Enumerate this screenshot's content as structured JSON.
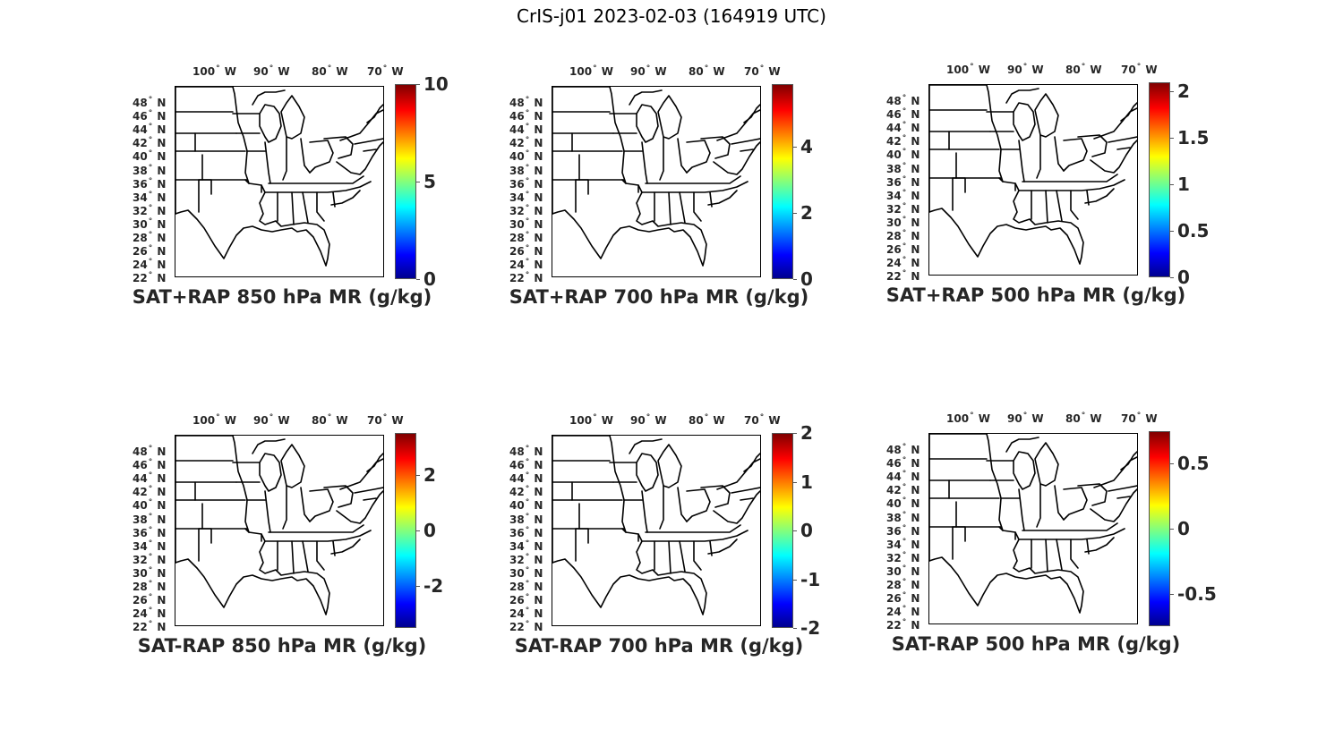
{
  "figure": {
    "title": "CrIS-j01 2023-02-03 (164919 UTC)"
  },
  "axes": {
    "lon_ticks": [
      "100",
      "90",
      "80",
      "70"
    ],
    "lon_hemisphere": "W",
    "lat_ticks": [
      "48",
      "46",
      "44",
      "42",
      "40",
      "38",
      "36",
      "34",
      "32",
      "30",
      "28",
      "26",
      "24",
      "22"
    ],
    "lat_hemisphere": "N",
    "lon_range": [
      -107,
      -66
    ],
    "lat_range": [
      22,
      50
    ]
  },
  "panels": [
    {
      "title": "SAT+RAP 850 hPa MR (g/kg)",
      "cbar_range": [
        0,
        10
      ],
      "cbar_ticks": [
        {
          "value": 0,
          "label": "0"
        },
        {
          "value": 5,
          "label": "5"
        },
        {
          "value": 10,
          "label": "10"
        }
      ]
    },
    {
      "title": "SAT+RAP 700 hPa MR (g/kg)",
      "cbar_range": [
        0,
        5.9
      ],
      "cbar_ticks": [
        {
          "value": 0,
          "label": "0"
        },
        {
          "value": 2,
          "label": "2"
        },
        {
          "value": 4,
          "label": "4"
        }
      ]
    },
    {
      "title": "SAT+RAP 500 hPa MR (g/kg)",
      "cbar_range": [
        0,
        2.1
      ],
      "cbar_ticks": [
        {
          "value": 0,
          "label": "0"
        },
        {
          "value": 0.5,
          "label": "0.5"
        },
        {
          "value": 1,
          "label": "1"
        },
        {
          "value": 1.5,
          "label": "1.5"
        },
        {
          "value": 2,
          "label": "2"
        }
      ]
    },
    {
      "title": "SAT-RAP 850 hPa MR (g/kg)",
      "cbar_range": [
        -3.5,
        3.5
      ],
      "cbar_ticks": [
        {
          "value": -2,
          "label": "-2"
        },
        {
          "value": 0,
          "label": "0"
        },
        {
          "value": 2,
          "label": "2"
        }
      ]
    },
    {
      "title": "SAT-RAP 700 hPa MR (g/kg)",
      "cbar_range": [
        -2,
        2
      ],
      "cbar_ticks": [
        {
          "value": -2,
          "label": "-2"
        },
        {
          "value": -1,
          "label": "-1"
        },
        {
          "value": 0,
          "label": "0"
        },
        {
          "value": 1,
          "label": "1"
        },
        {
          "value": 2,
          "label": "2"
        }
      ]
    },
    {
      "title": "SAT-RAP 500 hPa MR (g/kg)",
      "cbar_range": [
        -0.75,
        0.75
      ],
      "cbar_ticks": [
        {
          "value": -0.5,
          "label": "-0.5"
        },
        {
          "value": 0,
          "label": "0"
        },
        {
          "value": 0.5,
          "label": "0.5"
        }
      ]
    }
  ],
  "colormap": [
    "#00008f",
    "#0000ff",
    "#00ffff",
    "#ffff00",
    "#ff0000",
    "#800000"
  ]
}
